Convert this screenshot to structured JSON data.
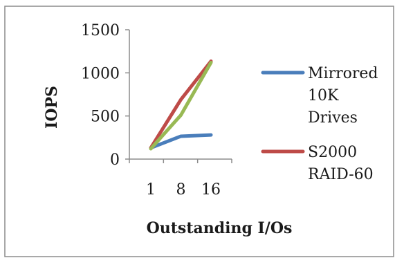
{
  "chart_data": {
    "type": "line",
    "x": [
      1,
      8,
      16
    ],
    "xlabel": "Outstanding I/Os",
    "ylabel": "IOPS",
    "ylim": [
      0,
      1500
    ],
    "yticks": [
      0,
      500,
      1000,
      1500
    ],
    "xticks": [
      "1",
      "8",
      "16"
    ],
    "grid": false,
    "legend_position": "right",
    "series": [
      {
        "name": [
          "Mirrored",
          "10K",
          "Drives"
        ],
        "values": [
          130,
          265,
          280
        ],
        "color": "#4a7ebb"
      },
      {
        "name": [
          "S2000",
          "RAID-60"
        ],
        "values": [
          130,
          690,
          1135
        ],
        "color": "#be4b48"
      },
      {
        "name": null,
        "values": [
          120,
          510,
          1120
        ],
        "color": "#98b954"
      }
    ]
  }
}
